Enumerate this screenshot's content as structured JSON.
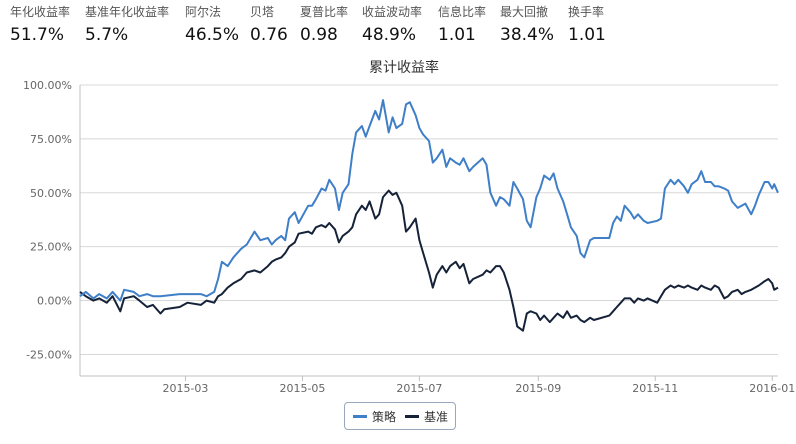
{
  "stats": [
    {
      "label": "年化收益率",
      "value": "51.7%"
    },
    {
      "label": "基准年化收益率",
      "value": "5.7%"
    },
    {
      "label": "阿尔法",
      "value": "46.5%"
    },
    {
      "label": "贝塔",
      "value": "0.76"
    },
    {
      "label": "夏普比率",
      "value": "0.98"
    },
    {
      "label": "收益波动率",
      "value": "48.9%"
    },
    {
      "label": "信息比率",
      "value": "1.01"
    },
    {
      "label": "最大回撤",
      "value": "38.4%"
    },
    {
      "label": "换手率",
      "value": "1.01"
    }
  ],
  "chart_data": {
    "type": "line",
    "title": "累计收益率",
    "x_ticks": [
      "2015-03",
      "2015-05",
      "2015-07",
      "2015-09",
      "2015-11",
      "2016-01"
    ],
    "y_ticks": [
      "100.00%",
      "75.00%",
      "50.00%",
      "25.00%",
      "0.00%",
      "-25.00%"
    ],
    "ylim": [
      -35,
      100
    ],
    "xlim": [
      "2015-01-05",
      "2016-01-04"
    ],
    "grid": true,
    "legend_position": "bottom-center",
    "series": [
      {
        "name": "策略",
        "color": "#3f7fc8",
        "points": [
          [
            "2015-01-05",
            2
          ],
          [
            "2015-01-08",
            4
          ],
          [
            "2015-01-12",
            1
          ],
          [
            "2015-01-15",
            3
          ],
          [
            "2015-01-19",
            1
          ],
          [
            "2015-01-22",
            4
          ],
          [
            "2015-01-26",
            0
          ],
          [
            "2015-01-28",
            5
          ],
          [
            "2015-02-02",
            4
          ],
          [
            "2015-02-05",
            2
          ],
          [
            "2015-02-09",
            3
          ],
          [
            "2015-02-12",
            2
          ],
          [
            "2015-02-16",
            2
          ],
          [
            "2015-02-26",
            3
          ],
          [
            "2015-03-02",
            3
          ],
          [
            "2015-03-09",
            3
          ],
          [
            "2015-03-12",
            2
          ],
          [
            "2015-03-16",
            4
          ],
          [
            "2015-03-18",
            10
          ],
          [
            "2015-03-20",
            18
          ],
          [
            "2015-03-23",
            16
          ],
          [
            "2015-03-26",
            20
          ],
          [
            "2015-03-30",
            24
          ],
          [
            "2015-04-02",
            26
          ],
          [
            "2015-04-06",
            32
          ],
          [
            "2015-04-09",
            28
          ],
          [
            "2015-04-13",
            29
          ],
          [
            "2015-04-15",
            26
          ],
          [
            "2015-04-17",
            28
          ],
          [
            "2015-04-20",
            30
          ],
          [
            "2015-04-22",
            28
          ],
          [
            "2015-04-24",
            38
          ],
          [
            "2015-04-27",
            41
          ],
          [
            "2015-04-29",
            36
          ],
          [
            "2015-05-04",
            44
          ],
          [
            "2015-05-06",
            44
          ],
          [
            "2015-05-08",
            47
          ],
          [
            "2015-05-11",
            52
          ],
          [
            "2015-05-13",
            51
          ],
          [
            "2015-05-15",
            56
          ],
          [
            "2015-05-18",
            52
          ],
          [
            "2015-05-20",
            42
          ],
          [
            "2015-05-22",
            50
          ],
          [
            "2015-05-25",
            54
          ],
          [
            "2015-05-27",
            68
          ],
          [
            "2015-05-29",
            78
          ],
          [
            "2015-06-01",
            81
          ],
          [
            "2015-06-03",
            76
          ],
          [
            "2015-06-05",
            81
          ],
          [
            "2015-06-08",
            88
          ],
          [
            "2015-06-10",
            84
          ],
          [
            "2015-06-12",
            93
          ],
          [
            "2015-06-15",
            78
          ],
          [
            "2015-06-17",
            85
          ],
          [
            "2015-06-19",
            80
          ],
          [
            "2015-06-22",
            82
          ],
          [
            "2015-06-24",
            91
          ],
          [
            "2015-06-26",
            92
          ],
          [
            "2015-06-29",
            86
          ],
          [
            "2015-07-01",
            80
          ],
          [
            "2015-07-03",
            77
          ],
          [
            "2015-07-06",
            74
          ],
          [
            "2015-07-08",
            64
          ],
          [
            "2015-07-10",
            66
          ],
          [
            "2015-07-13",
            70
          ],
          [
            "2015-07-15",
            62
          ],
          [
            "2015-07-17",
            66
          ],
          [
            "2015-07-20",
            64
          ],
          [
            "2015-07-22",
            63
          ],
          [
            "2015-07-24",
            66
          ],
          [
            "2015-07-27",
            60
          ],
          [
            "2015-07-29",
            62
          ],
          [
            "2015-08-03",
            66
          ],
          [
            "2015-08-05",
            63
          ],
          [
            "2015-08-07",
            50
          ],
          [
            "2015-08-10",
            44
          ],
          [
            "2015-08-12",
            48
          ],
          [
            "2015-08-14",
            47
          ],
          [
            "2015-08-17",
            44
          ],
          [
            "2015-08-19",
            55
          ],
          [
            "2015-08-21",
            52
          ],
          [
            "2015-08-24",
            47
          ],
          [
            "2015-08-26",
            37
          ],
          [
            "2015-08-28",
            34
          ],
          [
            "2015-08-31",
            48
          ],
          [
            "2015-09-02",
            52
          ],
          [
            "2015-09-04",
            58
          ],
          [
            "2015-09-07",
            56
          ],
          [
            "2015-09-09",
            59
          ],
          [
            "2015-09-11",
            52
          ],
          [
            "2015-09-14",
            46
          ],
          [
            "2015-09-16",
            40
          ],
          [
            "2015-09-18",
            34
          ],
          [
            "2015-09-21",
            30
          ],
          [
            "2015-09-23",
            22
          ],
          [
            "2015-09-25",
            20
          ],
          [
            "2015-09-28",
            28
          ],
          [
            "2015-09-30",
            29
          ],
          [
            "2015-10-08",
            29
          ],
          [
            "2015-10-10",
            36
          ],
          [
            "2015-10-12",
            39
          ],
          [
            "2015-10-14",
            37
          ],
          [
            "2015-10-16",
            44
          ],
          [
            "2015-10-19",
            41
          ],
          [
            "2015-10-21",
            38
          ],
          [
            "2015-10-23",
            40
          ],
          [
            "2015-10-26",
            37
          ],
          [
            "2015-10-28",
            36
          ],
          [
            "2015-11-02",
            37
          ],
          [
            "2015-11-04",
            38
          ],
          [
            "2015-11-06",
            52
          ],
          [
            "2015-11-09",
            56
          ],
          [
            "2015-11-11",
            54
          ],
          [
            "2015-11-13",
            56
          ],
          [
            "2015-11-16",
            53
          ],
          [
            "2015-11-18",
            50
          ],
          [
            "2015-11-20",
            54
          ],
          [
            "2015-11-23",
            56
          ],
          [
            "2015-11-25",
            60
          ],
          [
            "2015-11-27",
            55
          ],
          [
            "2015-11-30",
            55
          ],
          [
            "2015-12-02",
            53
          ],
          [
            "2015-12-04",
            53
          ],
          [
            "2015-12-07",
            52
          ],
          [
            "2015-12-09",
            51
          ],
          [
            "2015-12-11",
            46
          ],
          [
            "2015-12-14",
            43
          ],
          [
            "2015-12-16",
            44
          ],
          [
            "2015-12-18",
            45
          ],
          [
            "2015-12-21",
            40
          ],
          [
            "2015-12-23",
            44
          ],
          [
            "2015-12-25",
            49
          ],
          [
            "2015-12-28",
            55
          ],
          [
            "2015-12-30",
            55
          ],
          [
            "2016-01-01",
            52
          ],
          [
            "2016-01-02",
            54
          ],
          [
            "2016-01-04",
            50
          ]
        ]
      },
      {
        "name": "基准",
        "color": "#152238",
        "points": [
          [
            "2015-01-05",
            4
          ],
          [
            "2015-01-08",
            2
          ],
          [
            "2015-01-12",
            0
          ],
          [
            "2015-01-15",
            1
          ],
          [
            "2015-01-19",
            -1
          ],
          [
            "2015-01-22",
            2
          ],
          [
            "2015-01-26",
            -5
          ],
          [
            "2015-01-28",
            1
          ],
          [
            "2015-02-02",
            2
          ],
          [
            "2015-02-05",
            0
          ],
          [
            "2015-02-09",
            -3
          ],
          [
            "2015-02-12",
            -2
          ],
          [
            "2015-02-16",
            -6
          ],
          [
            "2015-02-18",
            -4
          ],
          [
            "2015-02-26",
            -3
          ],
          [
            "2015-03-02",
            -1
          ],
          [
            "2015-03-09",
            -2
          ],
          [
            "2015-03-12",
            0
          ],
          [
            "2015-03-16",
            -1
          ],
          [
            "2015-03-18",
            2
          ],
          [
            "2015-03-20",
            3
          ],
          [
            "2015-03-23",
            6
          ],
          [
            "2015-03-26",
            8
          ],
          [
            "2015-03-30",
            10
          ],
          [
            "2015-04-02",
            13
          ],
          [
            "2015-04-06",
            14
          ],
          [
            "2015-04-09",
            13
          ],
          [
            "2015-04-13",
            16
          ],
          [
            "2015-04-15",
            18
          ],
          [
            "2015-04-17",
            19
          ],
          [
            "2015-04-20",
            20
          ],
          [
            "2015-04-22",
            22
          ],
          [
            "2015-04-24",
            25
          ],
          [
            "2015-04-27",
            27
          ],
          [
            "2015-04-29",
            31
          ],
          [
            "2015-05-04",
            32
          ],
          [
            "2015-05-06",
            31
          ],
          [
            "2015-05-08",
            34
          ],
          [
            "2015-05-11",
            35
          ],
          [
            "2015-05-13",
            34
          ],
          [
            "2015-05-15",
            36
          ],
          [
            "2015-05-18",
            33
          ],
          [
            "2015-05-20",
            27
          ],
          [
            "2015-05-22",
            30
          ],
          [
            "2015-05-25",
            32
          ],
          [
            "2015-05-27",
            34
          ],
          [
            "2015-05-29",
            40
          ],
          [
            "2015-06-01",
            44
          ],
          [
            "2015-06-03",
            42
          ],
          [
            "2015-06-05",
            46
          ],
          [
            "2015-06-08",
            38
          ],
          [
            "2015-06-10",
            40
          ],
          [
            "2015-06-12",
            48
          ],
          [
            "2015-06-15",
            51
          ],
          [
            "2015-06-17",
            49
          ],
          [
            "2015-06-19",
            50
          ],
          [
            "2015-06-22",
            44
          ],
          [
            "2015-06-24",
            32
          ],
          [
            "2015-06-26",
            34
          ],
          [
            "2015-06-29",
            38
          ],
          [
            "2015-07-01",
            28
          ],
          [
            "2015-07-03",
            22
          ],
          [
            "2015-07-06",
            13
          ],
          [
            "2015-07-08",
            6
          ],
          [
            "2015-07-10",
            12
          ],
          [
            "2015-07-13",
            16
          ],
          [
            "2015-07-15",
            13
          ],
          [
            "2015-07-17",
            16
          ],
          [
            "2015-07-20",
            18
          ],
          [
            "2015-07-22",
            15
          ],
          [
            "2015-07-24",
            17
          ],
          [
            "2015-07-27",
            8
          ],
          [
            "2015-07-29",
            10
          ],
          [
            "2015-08-03",
            12
          ],
          [
            "2015-08-05",
            14
          ],
          [
            "2015-08-07",
            13
          ],
          [
            "2015-08-10",
            16
          ],
          [
            "2015-08-12",
            16
          ],
          [
            "2015-08-14",
            13
          ],
          [
            "2015-08-17",
            5
          ],
          [
            "2015-08-19",
            -3
          ],
          [
            "2015-08-21",
            -12
          ],
          [
            "2015-08-24",
            -14
          ],
          [
            "2015-08-26",
            -6
          ],
          [
            "2015-08-28",
            -5
          ],
          [
            "2015-08-31",
            -6
          ],
          [
            "2015-09-02",
            -9
          ],
          [
            "2015-09-04",
            -7
          ],
          [
            "2015-09-07",
            -10
          ],
          [
            "2015-09-09",
            -8
          ],
          [
            "2015-09-11",
            -6
          ],
          [
            "2015-09-14",
            -8
          ],
          [
            "2015-09-16",
            -5
          ],
          [
            "2015-09-18",
            -8
          ],
          [
            "2015-09-21",
            -7
          ],
          [
            "2015-09-23",
            -9
          ],
          [
            "2015-09-25",
            -10
          ],
          [
            "2015-09-28",
            -8
          ],
          [
            "2015-09-30",
            -9
          ],
          [
            "2015-10-08",
            -7
          ],
          [
            "2015-10-10",
            -5
          ],
          [
            "2015-10-12",
            -3
          ],
          [
            "2015-10-14",
            -1
          ],
          [
            "2015-10-16",
            1
          ],
          [
            "2015-10-19",
            1
          ],
          [
            "2015-10-21",
            -1
          ],
          [
            "2015-10-23",
            1
          ],
          [
            "2015-10-26",
            0
          ],
          [
            "2015-10-28",
            1
          ],
          [
            "2015-11-02",
            -1
          ],
          [
            "2015-11-04",
            2
          ],
          [
            "2015-11-06",
            5
          ],
          [
            "2015-11-09",
            7
          ],
          [
            "2015-11-11",
            6
          ],
          [
            "2015-11-13",
            7
          ],
          [
            "2015-11-16",
            6
          ],
          [
            "2015-11-18",
            7
          ],
          [
            "2015-11-20",
            6
          ],
          [
            "2015-11-23",
            5
          ],
          [
            "2015-11-25",
            7
          ],
          [
            "2015-11-27",
            6
          ],
          [
            "2015-11-30",
            5
          ],
          [
            "2015-12-02",
            7
          ],
          [
            "2015-12-04",
            6
          ],
          [
            "2015-12-07",
            1
          ],
          [
            "2015-12-09",
            2
          ],
          [
            "2015-12-11",
            4
          ],
          [
            "2015-12-14",
            5
          ],
          [
            "2015-12-16",
            3
          ],
          [
            "2015-12-18",
            4
          ],
          [
            "2015-12-21",
            5
          ],
          [
            "2015-12-23",
            6
          ],
          [
            "2015-12-25",
            7
          ],
          [
            "2015-12-28",
            9
          ],
          [
            "2015-12-30",
            10
          ],
          [
            "2016-01-01",
            8
          ],
          [
            "2016-01-02",
            5
          ],
          [
            "2016-01-04",
            6
          ]
        ]
      }
    ]
  }
}
